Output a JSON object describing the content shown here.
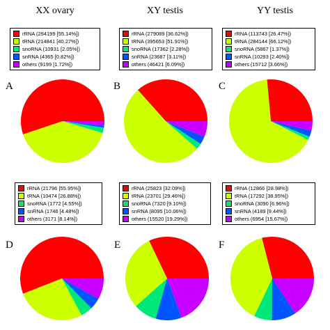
{
  "column_titles": [
    "XX ovary",
    "XY testis",
    "YY testis"
  ],
  "colors": {
    "rRNA": "#ff0000",
    "tRNA": "#ccff00",
    "snoRNA": "#00e87a",
    "snRNA": "#0055ff",
    "others": "#c800ff"
  },
  "chart_data": [
    {
      "type": "pie",
      "panel": "A",
      "title": "XX ovary",
      "slices": [
        {
          "name": "rRNA",
          "count": 294199,
          "percent": 55.14,
          "label": "rRNA (294199 [55.14%])"
        },
        {
          "name": "tRNA",
          "count": 214841,
          "percent": 40.27,
          "label": "tRNA (214841 [40.27%])"
        },
        {
          "name": "snoRNA",
          "count": 10931,
          "percent": 2.05,
          "label": "snoRNA (10931 [2.05%])"
        },
        {
          "name": "snRNA",
          "count": 4365,
          "percent": 0.82,
          "label": "snRNA (4365 [0.82%])"
        },
        {
          "name": "others",
          "count": 9199,
          "percent": 1.72,
          "label": "others (9199 [1.72%])"
        }
      ]
    },
    {
      "type": "pie",
      "panel": "B",
      "title": "XY testis",
      "slices": [
        {
          "name": "rRNA",
          "count": 279089,
          "percent": 36.62,
          "label": "rRNA (279089 [36.62%])"
        },
        {
          "name": "tRNA",
          "count": 395653,
          "percent": 51.91,
          "label": "tRNA (395653 [51.91%])"
        },
        {
          "name": "snoRNA",
          "count": 17362,
          "percent": 2.28,
          "label": "snoRNA (17362 [2.28%])"
        },
        {
          "name": "snRNA",
          "count": 23687,
          "percent": 3.11,
          "label": "snRNA (23687 [3.11%])"
        },
        {
          "name": "others",
          "count": 46421,
          "percent": 6.09,
          "label": "others (46421 [6.09%])"
        }
      ]
    },
    {
      "type": "pie",
      "panel": "C",
      "title": "YY testis",
      "slices": [
        {
          "name": "rRNA",
          "count": 113743,
          "percent": 26.47,
          "label": "rRNA (113743 [26.47%])"
        },
        {
          "name": "tRNA",
          "count": 284144,
          "percent": 66.12,
          "label": "tRNA (284144 [66.12%])"
        },
        {
          "name": "snoRNA",
          "count": 5867,
          "percent": 1.37,
          "label": "snoRNA (5867 [1.37%])"
        },
        {
          "name": "snRNA",
          "count": 10293,
          "percent": 2.4,
          "label": "snRNA (10293 [2.40%])"
        },
        {
          "name": "others",
          "count": 15712,
          "percent": 3.66,
          "label": "others (15712 [3.66%])"
        }
      ]
    },
    {
      "type": "pie",
      "panel": "D",
      "title": "",
      "slices": [
        {
          "name": "rRNA",
          "count": 21796,
          "percent": 55.95,
          "label": "rRNA (21796 [55.95%])"
        },
        {
          "name": "tRNA",
          "count": 10474,
          "percent": 26.88,
          "label": "tRNA (10474 [26.88%])"
        },
        {
          "name": "snoRNA",
          "count": 1772,
          "percent": 4.55,
          "label": "snoRNA (1772 [4.55%])"
        },
        {
          "name": "snRNA",
          "count": 1746,
          "percent": 4.48,
          "label": "snRNA (1746 [4.48%])"
        },
        {
          "name": "others",
          "count": 3171,
          "percent": 8.14,
          "label": "others (3171 [8.14%])"
        }
      ]
    },
    {
      "type": "pie",
      "panel": "E",
      "title": "",
      "slices": [
        {
          "name": "rRNA",
          "count": 25823,
          "percent": 32.09,
          "label": "rRNA (25823 [32.09%])"
        },
        {
          "name": "tRNA",
          "count": 23701,
          "percent": 29.46,
          "label": "tRNA (23701 [29.46%])"
        },
        {
          "name": "snoRNA",
          "count": 7320,
          "percent": 9.1,
          "label": "snoRNA (7320 [9.10%])"
        },
        {
          "name": "snRNA",
          "count": 8095,
          "percent": 10.06,
          "label": "snRNA (8095 [10.06%])"
        },
        {
          "name": "others",
          "count": 15520,
          "percent": 19.29,
          "label": "others (15520 [19.29%])"
        }
      ]
    },
    {
      "type": "pie",
      "panel": "F",
      "title": "",
      "slices": [
        {
          "name": "rRNA",
          "count": 12866,
          "percent": 28.98,
          "label": "rRNA (12866 [28.98%])"
        },
        {
          "name": "tRNA",
          "count": 17292,
          "percent": 38.95,
          "label": "tRNA (17292 [38.95%])"
        },
        {
          "name": "snoRNA",
          "count": 3090,
          "percent": 6.96,
          "label": "snoRNA (3090 [6.96%])"
        },
        {
          "name": "snRNA",
          "count": 4189,
          "percent": 9.44,
          "label": "snRNA (4189 [9.44%])"
        },
        {
          "name": "others",
          "count": 6954,
          "percent": 15.67,
          "label": "others (6954 [15.67%])"
        }
      ]
    }
  ]
}
